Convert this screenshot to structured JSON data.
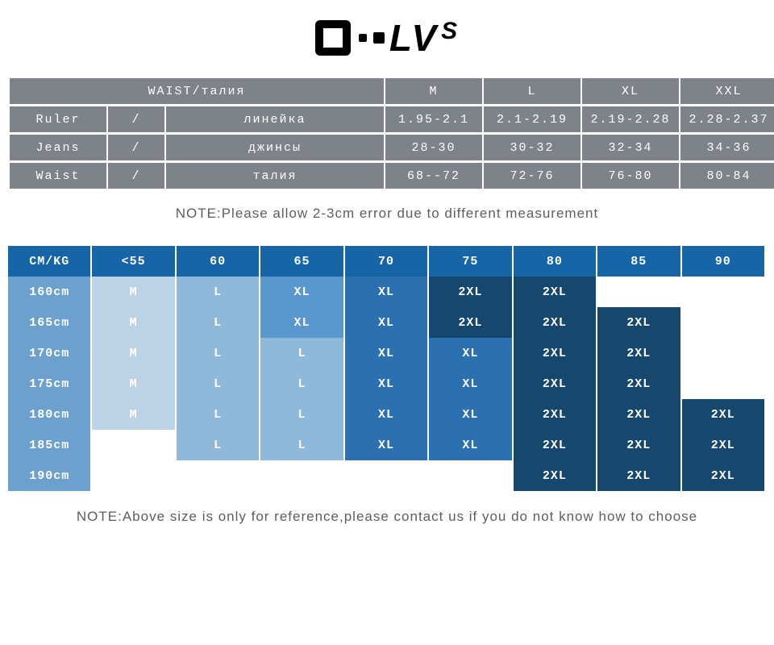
{
  "logo": {
    "text_l": "L",
    "text_v": "V",
    "text_s": "S"
  },
  "table1": {
    "header": {
      "label": "WAIST/талия",
      "sizes": [
        "M",
        "L",
        "XL",
        "XXL"
      ]
    },
    "rows": [
      {
        "en": "Ruler",
        "sep": "/",
        "ru": "линейка",
        "vals": [
          "1.95-2.1",
          "2.1-2.19",
          "2.19-2.28",
          "2.28-2.37"
        ]
      },
      {
        "en": "Jeans",
        "sep": "/",
        "ru": "джинсы",
        "vals": [
          "28-30",
          "30-32",
          "32-34",
          "34-36"
        ]
      },
      {
        "en": "Waist",
        "sep": "/",
        "ru": "талия",
        "vals": [
          "68--72",
          "72-76",
          "76-80",
          "80-84"
        ]
      }
    ]
  },
  "note1": "NOTE:Please allow 2-3cm error due to different measurement",
  "table2": {
    "headers": [
      "CM/KG",
      "<55",
      "60",
      "65",
      "70",
      "75",
      "80",
      "85",
      "90"
    ],
    "rows": [
      {
        "h": "160cm",
        "cells": [
          {
            "t": "M",
            "s": "s1"
          },
          {
            "t": "L",
            "s": "s2"
          },
          {
            "t": "XL",
            "s": "s3"
          },
          {
            "t": "XL",
            "s": "s4"
          },
          {
            "t": "2XL",
            "s": "s5"
          },
          {
            "t": "2XL",
            "s": "s5"
          },
          {
            "t": "",
            "s": "s0"
          },
          {
            "t": "",
            "s": "s0"
          }
        ]
      },
      {
        "h": "165cm",
        "cells": [
          {
            "t": "M",
            "s": "s1"
          },
          {
            "t": "L",
            "s": "s2"
          },
          {
            "t": "XL",
            "s": "s3"
          },
          {
            "t": "XL",
            "s": "s4"
          },
          {
            "t": "2XL",
            "s": "s5"
          },
          {
            "t": "2XL",
            "s": "s5"
          },
          {
            "t": "2XL",
            "s": "s5"
          },
          {
            "t": "",
            "s": "s0"
          }
        ]
      },
      {
        "h": "170cm",
        "cells": [
          {
            "t": "M",
            "s": "s1"
          },
          {
            "t": "L",
            "s": "s2"
          },
          {
            "t": "L",
            "s": "s2"
          },
          {
            "t": "XL",
            "s": "s4"
          },
          {
            "t": "XL",
            "s": "s4"
          },
          {
            "t": "2XL",
            "s": "s5"
          },
          {
            "t": "2XL",
            "s": "s5"
          },
          {
            "t": "",
            "s": "s0"
          }
        ]
      },
      {
        "h": "175cm",
        "cells": [
          {
            "t": "M",
            "s": "s1"
          },
          {
            "t": "L",
            "s": "s2"
          },
          {
            "t": "L",
            "s": "s2"
          },
          {
            "t": "XL",
            "s": "s4"
          },
          {
            "t": "XL",
            "s": "s4"
          },
          {
            "t": "2XL",
            "s": "s5"
          },
          {
            "t": "2XL",
            "s": "s5"
          },
          {
            "t": "",
            "s": "s0"
          }
        ]
      },
      {
        "h": "180cm",
        "cells": [
          {
            "t": "M",
            "s": "s1"
          },
          {
            "t": "L",
            "s": "s2"
          },
          {
            "t": "L",
            "s": "s2"
          },
          {
            "t": "XL",
            "s": "s4"
          },
          {
            "t": "XL",
            "s": "s4"
          },
          {
            "t": "2XL",
            "s": "s5"
          },
          {
            "t": "2XL",
            "s": "s5"
          },
          {
            "t": "2XL",
            "s": "s5"
          }
        ]
      },
      {
        "h": "185cm",
        "cells": [
          {
            "t": "",
            "s": "s0"
          },
          {
            "t": "L",
            "s": "s2"
          },
          {
            "t": "L",
            "s": "s2"
          },
          {
            "t": "XL",
            "s": "s4"
          },
          {
            "t": "XL",
            "s": "s4"
          },
          {
            "t": "2XL",
            "s": "s5"
          },
          {
            "t": "2XL",
            "s": "s5"
          },
          {
            "t": "2XL",
            "s": "s5"
          }
        ]
      },
      {
        "h": "190cm",
        "cells": [
          {
            "t": "",
            "s": "s0"
          },
          {
            "t": "",
            "s": "s0"
          },
          {
            "t": "",
            "s": "s0"
          },
          {
            "t": "",
            "s": "s0"
          },
          {
            "t": "",
            "s": "s0"
          },
          {
            "t": "2XL",
            "s": "s5"
          },
          {
            "t": "2XL",
            "s": "s5"
          },
          {
            "t": "2XL",
            "s": "s5"
          }
        ]
      }
    ]
  },
  "note2": "NOTE:Above size is only for reference,please contact us if you do not know how to choose"
}
